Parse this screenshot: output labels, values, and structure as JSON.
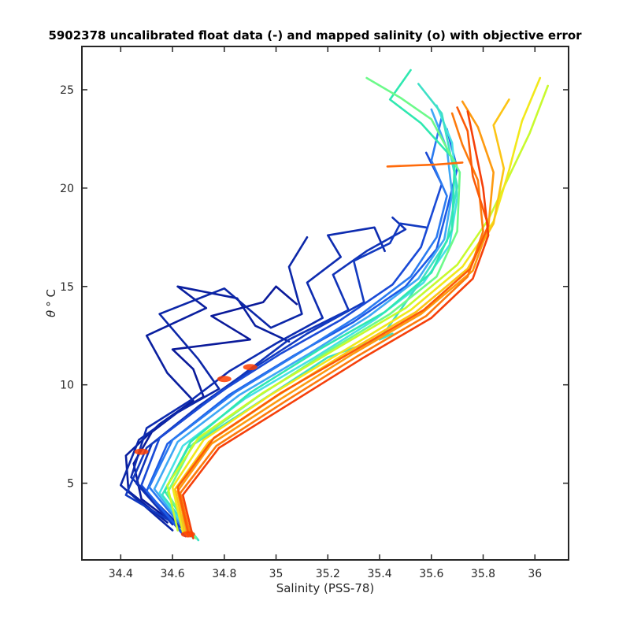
{
  "chart_data": {
    "type": "line",
    "title": "5902378 uncalibrated float data (-) and mapped salinity (o) with objective error",
    "xlabel": "Salinity (PSS-78)",
    "ylabel_symbol": "θ",
    "ylabel_unit": "°  C",
    "xlim": [
      34.25,
      36.13
    ],
    "ylim": [
      1.1,
      27.2
    ],
    "xticks": [
      34.4,
      34.6,
      34.8,
      35,
      35.2,
      35.4,
      35.6,
      35.8,
      36
    ],
    "xtick_labels": [
      "34.4",
      "34.6",
      "34.8",
      "35",
      "35.2",
      "35.4",
      "35.6",
      "35.8",
      "36"
    ],
    "yticks": [
      5,
      10,
      15,
      20,
      25
    ],
    "ytick_labels": [
      "5",
      "10",
      "15",
      "20",
      "25"
    ],
    "grid": false,
    "colormap": "jet",
    "colormap_colors": [
      "#00008f",
      "#0000ff",
      "#00ffff",
      "#ffff00",
      "#ff0000",
      "#800000"
    ],
    "series": [
      {
        "color": "#0a1a9a",
        "points": [
          [
            34.62,
            2.8
          ],
          [
            34.48,
            4.2
          ],
          [
            34.45,
            6.0
          ],
          [
            34.52,
            7.6
          ],
          [
            34.62,
            8.6
          ],
          [
            34.72,
            9.4
          ],
          [
            34.68,
            10.8
          ],
          [
            34.6,
            11.8
          ],
          [
            34.9,
            12.3
          ],
          [
            34.75,
            13.5
          ],
          [
            34.95,
            14.2
          ],
          [
            35.0,
            15.0
          ],
          [
            35.08,
            14.1
          ]
        ]
      },
      {
        "color": "#0a1f9f",
        "points": [
          [
            34.58,
            3.0
          ],
          [
            34.43,
            4.6
          ],
          [
            34.42,
            6.4
          ],
          [
            34.55,
            8.0
          ],
          [
            34.68,
            9.2
          ],
          [
            34.58,
            10.6
          ],
          [
            34.5,
            12.5
          ],
          [
            34.73,
            13.9
          ],
          [
            34.62,
            15.0
          ],
          [
            34.85,
            14.4
          ],
          [
            34.92,
            13.0
          ],
          [
            35.05,
            12.2
          ]
        ]
      },
      {
        "color": "#0c27a8",
        "points": [
          [
            34.6,
            2.6
          ],
          [
            34.4,
            4.9
          ],
          [
            34.47,
            7.2
          ],
          [
            34.62,
            8.6
          ],
          [
            34.78,
            9.8
          ],
          [
            34.7,
            11.3
          ],
          [
            34.55,
            13.6
          ],
          [
            34.8,
            14.9
          ],
          [
            34.98,
            12.9
          ],
          [
            35.1,
            13.6
          ],
          [
            35.05,
            16.0
          ],
          [
            35.12,
            17.5
          ]
        ]
      },
      {
        "color": "#0e2cb0",
        "points": [
          [
            34.66,
            2.4
          ],
          [
            34.44,
            5.3
          ],
          [
            34.5,
            7.8
          ],
          [
            34.68,
            9.3
          ],
          [
            34.82,
            10.7
          ],
          [
            35.0,
            12.1
          ],
          [
            35.18,
            13.4
          ],
          [
            35.12,
            15.2
          ],
          [
            35.25,
            16.5
          ],
          [
            35.2,
            17.6
          ],
          [
            35.38,
            18.0
          ],
          [
            35.42,
            16.8
          ]
        ]
      },
      {
        "color": "#1033b8",
        "points": [
          [
            34.6,
            2.9
          ],
          [
            34.46,
            5.0
          ],
          [
            34.52,
            7.0
          ],
          [
            34.7,
            8.9
          ],
          [
            34.86,
            10.4
          ],
          [
            35.05,
            12.3
          ],
          [
            35.28,
            13.8
          ],
          [
            35.22,
            15.6
          ],
          [
            35.35,
            16.8
          ],
          [
            35.5,
            17.9
          ],
          [
            35.45,
            18.5
          ]
        ]
      },
      {
        "color": "#123ac0",
        "points": [
          [
            34.64,
            2.7
          ],
          [
            34.42,
            4.4
          ],
          [
            34.5,
            6.8
          ],
          [
            34.72,
            9.0
          ],
          [
            34.92,
            10.9
          ],
          [
            35.12,
            12.6
          ],
          [
            35.34,
            14.2
          ],
          [
            35.3,
            16.3
          ],
          [
            35.44,
            17.2
          ],
          [
            35.48,
            18.2
          ],
          [
            35.58,
            18.0
          ]
        ]
      },
      {
        "color": "#1a4ad6",
        "points": [
          [
            34.64,
            2.4
          ],
          [
            34.48,
            4.9
          ],
          [
            34.55,
            7.3
          ],
          [
            34.78,
            9.6
          ],
          [
            35.02,
            11.6
          ],
          [
            35.25,
            13.3
          ],
          [
            35.45,
            15.1
          ],
          [
            35.56,
            17.0
          ],
          [
            35.6,
            18.6
          ],
          [
            35.64,
            20.2
          ],
          [
            35.58,
            21.8
          ]
        ]
      },
      {
        "color": "#1d5ce6",
        "points": [
          [
            34.65,
            2.3
          ],
          [
            34.5,
            4.6
          ],
          [
            34.58,
            7.0
          ],
          [
            34.82,
            9.5
          ],
          [
            35.07,
            11.5
          ],
          [
            35.3,
            13.2
          ],
          [
            35.5,
            15.0
          ],
          [
            35.62,
            16.9
          ],
          [
            35.66,
            18.9
          ],
          [
            35.7,
            21.0
          ],
          [
            35.66,
            23.0
          ]
        ]
      },
      {
        "color": "#2a7af0",
        "points": [
          [
            34.66,
            2.4
          ],
          [
            34.51,
            4.8
          ],
          [
            34.6,
            7.2
          ],
          [
            34.84,
            9.6
          ],
          [
            35.1,
            11.7
          ],
          [
            35.33,
            13.6
          ],
          [
            35.52,
            15.5
          ],
          [
            35.62,
            17.5
          ],
          [
            35.66,
            19.6
          ],
          [
            35.6,
            21.4
          ],
          [
            35.64,
            23.6
          ]
        ]
      },
      {
        "color": "#3fa8f5",
        "points": [
          [
            34.67,
            2.3
          ],
          [
            34.53,
            4.7
          ],
          [
            34.62,
            7.1
          ],
          [
            34.86,
            9.5
          ],
          [
            35.13,
            11.6
          ],
          [
            35.36,
            13.5
          ],
          [
            35.55,
            15.4
          ],
          [
            35.65,
            17.4
          ],
          [
            35.68,
            19.7
          ],
          [
            35.66,
            22.0
          ],
          [
            35.6,
            24.0
          ]
        ]
      },
      {
        "color": "#47e0e6",
        "points": [
          [
            34.68,
            2.2
          ],
          [
            34.55,
            4.5
          ],
          [
            34.64,
            6.9
          ],
          [
            34.88,
            9.3
          ],
          [
            35.15,
            11.4
          ],
          [
            35.38,
            13.3
          ],
          [
            35.57,
            15.2
          ],
          [
            35.67,
            17.1
          ],
          [
            35.7,
            19.5
          ],
          [
            35.68,
            22.3
          ],
          [
            35.62,
            24.2
          ]
        ]
      },
      {
        "color": "#3ee0c6",
        "points": [
          [
            34.7,
            2.1
          ],
          [
            34.56,
            4.4
          ],
          [
            34.66,
            6.8
          ],
          [
            34.92,
            9.0
          ],
          [
            35.2,
            11.4
          ],
          [
            35.45,
            12.6
          ],
          [
            35.4,
            12.3
          ],
          [
            35.55,
            15.1
          ],
          [
            35.66,
            17.3
          ],
          [
            35.7,
            20.1
          ],
          [
            35.64,
            23.8
          ],
          [
            35.55,
            25.3
          ]
        ]
      },
      {
        "color": "#2fe8b0",
        "points": [
          [
            34.68,
            2.4
          ],
          [
            34.57,
            4.6
          ],
          [
            34.67,
            7.1
          ],
          [
            34.9,
            9.6
          ],
          [
            35.18,
            11.9
          ],
          [
            35.42,
            13.7
          ],
          [
            35.6,
            15.7
          ],
          [
            35.68,
            17.9
          ],
          [
            35.69,
            21.4
          ],
          [
            35.56,
            23.3
          ],
          [
            35.44,
            24.5
          ],
          [
            35.52,
            26.0
          ]
        ]
      },
      {
        "color": "#6dfa8a",
        "points": [
          [
            34.69,
            2.2
          ],
          [
            34.58,
            4.5
          ],
          [
            34.68,
            7.0
          ],
          [
            34.93,
            9.4
          ],
          [
            35.2,
            11.7
          ],
          [
            35.44,
            13.6
          ],
          [
            35.62,
            15.5
          ],
          [
            35.7,
            17.8
          ],
          [
            35.71,
            20.8
          ],
          [
            35.6,
            23.5
          ],
          [
            35.48,
            24.6
          ],
          [
            35.35,
            25.6
          ]
        ]
      },
      {
        "color": "#c8fa2e",
        "points": [
          [
            34.62,
            2.6
          ],
          [
            34.58,
            4.9
          ],
          [
            34.7,
            7.3
          ],
          [
            34.95,
            9.6
          ],
          [
            35.24,
            11.9
          ],
          [
            35.5,
            13.9
          ],
          [
            35.7,
            16.1
          ],
          [
            35.82,
            18.4
          ],
          [
            35.9,
            20.6
          ],
          [
            35.98,
            22.8
          ],
          [
            36.05,
            25.2
          ]
        ]
      },
      {
        "color": "#f2e81a",
        "points": [
          [
            34.64,
            2.5
          ],
          [
            34.6,
            4.8
          ],
          [
            34.72,
            7.2
          ],
          [
            34.98,
            9.5
          ],
          [
            35.27,
            11.8
          ],
          [
            35.52,
            13.8
          ],
          [
            35.72,
            16.0
          ],
          [
            35.84,
            18.3
          ],
          [
            35.9,
            20.9
          ],
          [
            35.95,
            23.4
          ],
          [
            36.02,
            25.6
          ]
        ]
      },
      {
        "color": "#fcc415",
        "points": [
          [
            34.65,
            2.4
          ],
          [
            34.61,
            4.7
          ],
          [
            34.74,
            7.1
          ],
          [
            35.0,
            9.4
          ],
          [
            35.28,
            11.7
          ],
          [
            35.54,
            13.7
          ],
          [
            35.74,
            15.9
          ],
          [
            35.84,
            18.2
          ],
          [
            35.88,
            21.0
          ],
          [
            35.84,
            23.2
          ],
          [
            35.9,
            24.5
          ]
        ]
      },
      {
        "color": "#fd9a10",
        "points": [
          [
            34.66,
            2.3
          ],
          [
            34.62,
            4.6
          ],
          [
            34.75,
            7.0
          ],
          [
            35.02,
            9.3
          ],
          [
            35.3,
            11.6
          ],
          [
            35.56,
            13.6
          ],
          [
            35.76,
            15.8
          ],
          [
            35.82,
            18.0
          ],
          [
            35.84,
            20.8
          ],
          [
            35.78,
            23.1
          ],
          [
            35.72,
            24.4
          ]
        ]
      },
      {
        "color": "#fd7a0c",
        "points": [
          [
            34.67,
            2.3
          ],
          [
            34.63,
            4.5
          ],
          [
            34.77,
            6.9
          ],
          [
            35.04,
            9.2
          ],
          [
            35.32,
            11.5
          ],
          [
            35.58,
            13.5
          ],
          [
            35.74,
            15.5
          ],
          [
            35.8,
            17.8
          ],
          [
            35.78,
            20.4
          ],
          [
            35.72,
            22.2
          ],
          [
            35.68,
            23.8
          ]
        ]
      },
      {
        "color": "#fb5a08",
        "points": [
          [
            34.66,
            2.5
          ],
          [
            34.62,
            4.8
          ],
          [
            34.76,
            7.3
          ],
          [
            35.02,
            9.6
          ],
          [
            35.31,
            11.8
          ],
          [
            35.57,
            13.8
          ],
          [
            35.75,
            15.9
          ],
          [
            35.82,
            18.1
          ],
          [
            35.76,
            20.6
          ],
          [
            35.74,
            22.9
          ],
          [
            35.7,
            24.1
          ]
        ]
      },
      {
        "color": "#ff6a0a",
        "points": [
          [
            35.43,
            21.1
          ],
          [
            35.62,
            21.2
          ],
          [
            35.72,
            21.3
          ]
        ]
      },
      {
        "color": "#f5400a",
        "points": [
          [
            34.68,
            2.2
          ],
          [
            34.64,
            4.4
          ],
          [
            34.78,
            6.8
          ],
          [
            35.06,
            9.1
          ],
          [
            35.34,
            11.4
          ],
          [
            35.6,
            13.4
          ],
          [
            35.76,
            15.4
          ],
          [
            35.82,
            17.6
          ],
          [
            35.8,
            20.0
          ],
          [
            35.76,
            22.6
          ],
          [
            35.74,
            23.9
          ]
        ]
      }
    ],
    "mapped_markers": [
      {
        "color": "#ff3d00",
        "points": [
          [
            34.48,
            6.6
          ],
          [
            34.8,
            10.3
          ],
          [
            34.9,
            10.9
          ],
          [
            34.66,
            2.4
          ]
        ]
      }
    ]
  }
}
